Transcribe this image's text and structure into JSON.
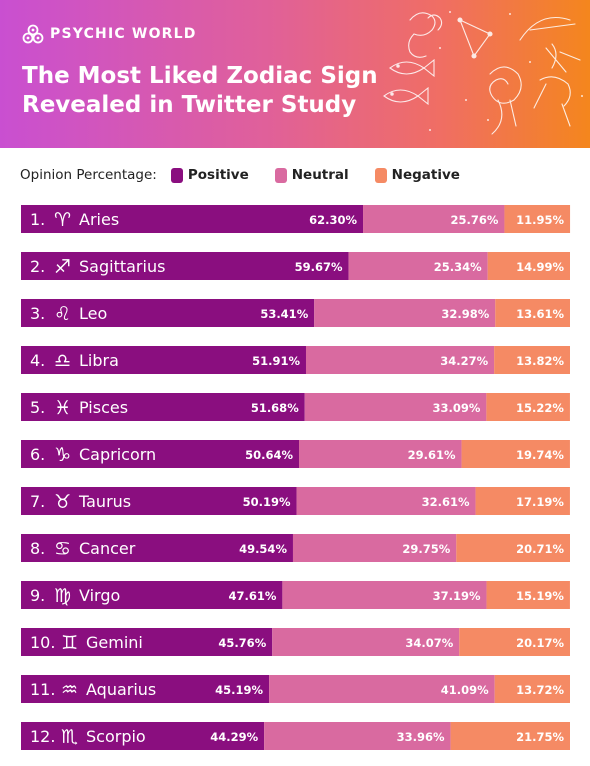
{
  "brand": {
    "name": "PSYCHIC WORLD"
  },
  "title": {
    "line1": "The Most Liked Zodiac Sign",
    "line2": "Revealed in Twitter Study"
  },
  "legend": {
    "title": "Opinion Percentage:",
    "items": [
      {
        "label": "Positive",
        "color": "#8a0e7f"
      },
      {
        "label": "Neutral",
        "color": "#d96aa0"
      },
      {
        "label": "Negative",
        "color": "#f58a64"
      }
    ]
  },
  "chart_data": {
    "type": "bar",
    "orientation": "horizontal",
    "stacked": true,
    "categories": [
      "1. ♈ Aries",
      "2. ♐ Sagittarius",
      "3. ♌ Leo",
      "4. ♎ Libra",
      "5. ♓ Pisces",
      "6. ♑ Capricorn",
      "7. ♉ Taurus",
      "8. ♋ Cancer",
      "9. ♍ Virgo",
      "10. ♊ Gemini",
      "11. ♒ Aquarius",
      "12. ♏ Scorpio"
    ],
    "category_parts": [
      {
        "rank": "1.",
        "symbol": "♈",
        "name": "Aries"
      },
      {
        "rank": "2.",
        "symbol": "♐",
        "name": "Sagittarius"
      },
      {
        "rank": "3.",
        "symbol": "♌",
        "name": "Leo"
      },
      {
        "rank": "4.",
        "symbol": "♎",
        "name": "Libra"
      },
      {
        "rank": "5.",
        "symbol": "♓",
        "name": "Pisces"
      },
      {
        "rank": "6.",
        "symbol": "♑",
        "name": "Capricorn"
      },
      {
        "rank": "7.",
        "symbol": "♉",
        "name": "Taurus"
      },
      {
        "rank": "8.",
        "symbol": "♋",
        "name": "Cancer"
      },
      {
        "rank": "9.",
        "symbol": "♍",
        "name": "Virgo"
      },
      {
        "rank": "10.",
        "symbol": "♊",
        "name": "Gemini"
      },
      {
        "rank": "11.",
        "symbol": "♒",
        "name": "Aquarius"
      },
      {
        "rank": "12.",
        "symbol": "♏",
        "name": "Scorpio"
      }
    ],
    "series": [
      {
        "name": "Positive",
        "color": "#8a0e7f",
        "values": [
          62.3,
          59.67,
          53.41,
          51.91,
          51.68,
          50.64,
          50.19,
          49.54,
          47.61,
          45.76,
          45.19,
          44.29
        ]
      },
      {
        "name": "Neutral",
        "color": "#d96aa0",
        "values": [
          25.76,
          25.34,
          32.98,
          34.27,
          33.09,
          29.61,
          32.61,
          29.75,
          37.19,
          34.07,
          41.09,
          33.96
        ]
      },
      {
        "name": "Negative",
        "color": "#f58a64",
        "values": [
          11.95,
          14.99,
          13.61,
          13.82,
          15.22,
          19.74,
          17.19,
          20.71,
          15.19,
          20.17,
          13.72,
          21.75
        ]
      }
    ],
    "value_labels": [
      [
        "62.30%",
        "25.76%",
        "11.95%"
      ],
      [
        "59.67%",
        "25.34%",
        "14.99%"
      ],
      [
        "53.41%",
        "32.98%",
        "13.61%"
      ],
      [
        "51.91%",
        "34.27%",
        "13.82%"
      ],
      [
        "51.68%",
        "33.09%",
        "15.22%"
      ],
      [
        "50.64%",
        "29.61%",
        "19.74%"
      ],
      [
        "50.19%",
        "32.61%",
        "17.19%"
      ],
      [
        "49.54%",
        "29.75%",
        "20.71%"
      ],
      [
        "47.61%",
        "37.19%",
        "15.19%"
      ],
      [
        "45.76%",
        "34.07%",
        "20.17%"
      ],
      [
        "45.19%",
        "41.09%",
        "13.72%"
      ],
      [
        "44.29%",
        "33.96%",
        "21.75%"
      ]
    ],
    "xlim": [
      0,
      100
    ],
    "legend_position": "top",
    "grid": false
  }
}
